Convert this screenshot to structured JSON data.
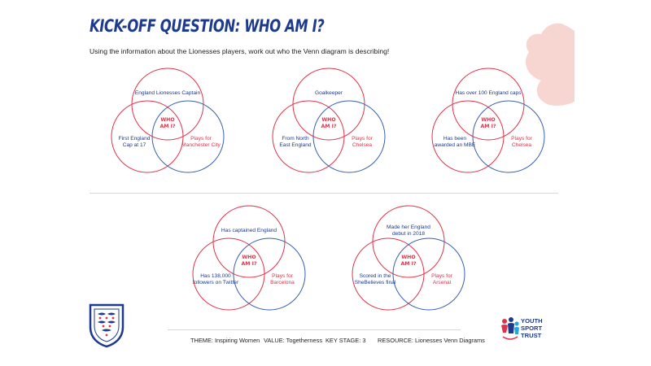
{
  "header": {
    "title": "KICK-OFF QUESTION: WHO AM I?",
    "subtitle": "Using the information about the Lionesses players, work out who the Venn diagram is describing!"
  },
  "center_label": [
    "WHO",
    "AM I?"
  ],
  "venns": [
    {
      "top": [
        "England Lionesses Captain"
      ],
      "left": [
        "First England",
        "Cap at 17"
      ],
      "right": [
        "Plays for",
        "Manchester City"
      ]
    },
    {
      "top": [
        "Goalkeeper"
      ],
      "left": [
        "From North",
        "East England"
      ],
      "right": [
        "Plays for",
        "Chelsea"
      ]
    },
    {
      "top": [
        "Has over 100 England caps"
      ],
      "left": [
        "Has been",
        "awarded an MBE"
      ],
      "right": [
        "Plays for",
        "Chelsea"
      ]
    },
    {
      "top": [
        "Has captained England"
      ],
      "left": [
        "Has 138,000",
        "followers on Twitter"
      ],
      "right": [
        "Plays for",
        "Barcelona"
      ]
    },
    {
      "top": [
        "Made her England",
        "debut in 2018"
      ],
      "left": [
        "Scored in the",
        "SheBelieves final"
      ],
      "right": [
        "Plays for",
        "Arsenal"
      ]
    }
  ],
  "footer": {
    "theme": "THEME: Inspiring Women",
    "value": "VALUE: Togetherness",
    "key_stage": "KEY STAGE: 3",
    "resource": "RESOURCE: Lionesses Venn Diagrams"
  },
  "logo": {
    "line1": "YOUTH",
    "line2": "SPORT",
    "line3": "TRUST"
  },
  "colors": {
    "navy": "#1d3a8f",
    "red": "#e2324a",
    "blue_circle": "#3a5fae",
    "deco": "#f7d6d2"
  }
}
